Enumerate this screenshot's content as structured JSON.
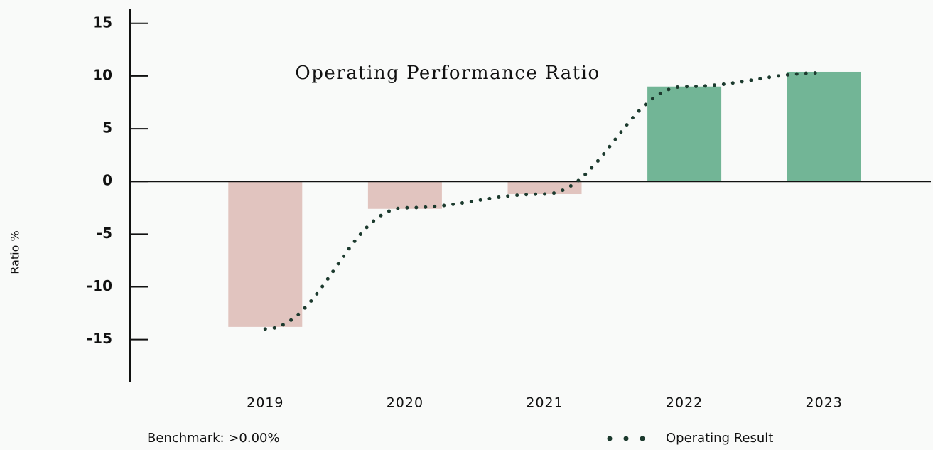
{
  "chart_data": {
    "type": "bar",
    "title": "Operating Performance Ratio",
    "y_label": "Ratio %",
    "annotation": "Benchmark: >0.00%",
    "categories": [
      "2019",
      "2020",
      "2021",
      "2022",
      "2023"
    ],
    "values": [
      -13.8,
      -2.6,
      -1.2,
      9.0,
      10.4
    ],
    "positive_color": "#72b596",
    "negative_color": "#e1c4bf",
    "series": [
      {
        "name": "Operating Result",
        "color": "#1c3a2e",
        "type": "line",
        "values": [
          -14.0,
          -2.5,
          -1.2,
          9.0,
          10.3
        ]
      }
    ],
    "ylim": [
      -19,
      16.4
    ],
    "yticks": [
      -15,
      -10,
      -5,
      0,
      5,
      10,
      15
    ],
    "legend": "bottom-right"
  }
}
